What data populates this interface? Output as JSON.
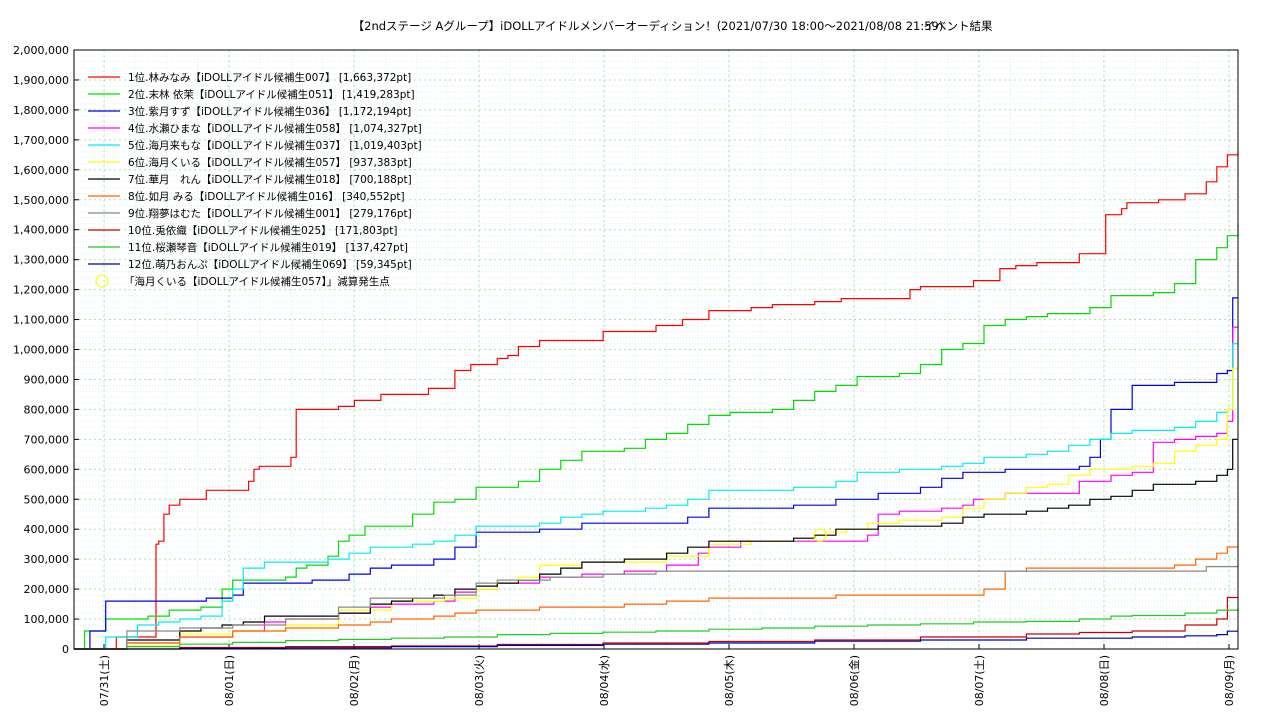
{
  "chart_data": {
    "type": "line",
    "title": "【2ndステージ Aグループ】iDOLLアイドルメンバーオーディション！(2021/07/30 18:00～2021/08/08 21:59)",
    "subtitle": "イベント結果",
    "xlabel": "",
    "ylabel": "",
    "x_ticks": [
      "07/31(土)",
      "08/01(日)",
      "08/02(月)",
      "08/03(火)",
      "08/04(水)",
      "08/05(木)",
      "08/06(金)",
      "08/07(土)",
      "08/08(日)",
      "08/09(月)"
    ],
    "x_range_hours": [
      0,
      220
    ],
    "ylim": [
      0,
      2000000
    ],
    "y_ticks": [
      0,
      100000,
      200000,
      300000,
      400000,
      500000,
      600000,
      700000,
      800000,
      900000,
      1000000,
      1100000,
      1200000,
      1300000,
      1400000,
      1500000,
      1600000,
      1700000,
      1800000,
      1900000,
      2000000
    ],
    "y_tick_labels": [
      "0",
      "100,000",
      "200,000",
      "300,000",
      "400,000",
      "500,000",
      "600,000",
      "700,000",
      "800,000",
      "900,000",
      "1,000,000",
      "1,100,000",
      "1,200,000",
      "1,300,000",
      "1,400,000",
      "1,500,000",
      "1,600,000",
      "1,700,000",
      "1,800,000",
      "1,900,000",
      "2,000,000"
    ],
    "grid": true,
    "legend_position": "top-left",
    "marker_legend": "「海月くいる【iDOLLアイドル候補生057】」減算発生点",
    "marker_color": "#ffff00",
    "marker_points": [
      {
        "x": 141,
        "y": 380000
      }
    ],
    "series": [
      {
        "name": "1位.林みなみ【iDOLLアイドル候補生007】 [1,663,372pt]",
        "color": "#ff0000",
        "x": [
          0,
          8,
          15,
          15.5,
          16,
          17,
          18,
          20,
          22,
          25,
          32,
          33,
          34,
          35,
          40,
          41,
          42,
          50,
          53,
          55,
          58,
          67,
          69,
          72,
          75,
          80,
          82,
          84,
          88,
          92,
          96,
          100,
          110,
          115,
          120,
          125,
          128,
          132,
          140,
          145,
          150,
          158,
          160,
          165,
          170,
          175,
          178,
          182,
          185,
          190,
          195,
          198,
          199,
          200,
          205,
          210,
          212,
          214,
          216,
          218,
          220
        ],
        "y": [
          0,
          40000,
          40000,
          350000,
          360000,
          450000,
          480000,
          500000,
          500000,
          530000,
          530000,
          560000,
          600000,
          610000,
          610000,
          640000,
          800000,
          810000,
          830000,
          830000,
          850000,
          870000,
          870000,
          930000,
          950000,
          970000,
          980000,
          1010000,
          1030000,
          1030000,
          1030000,
          1060000,
          1080000,
          1100000,
          1130000,
          1130000,
          1140000,
          1150000,
          1160000,
          1170000,
          1170000,
          1200000,
          1210000,
          1210000,
          1230000,
          1270000,
          1280000,
          1290000,
          1290000,
          1320000,
          1450000,
          1470000,
          1490000,
          1490000,
          1500000,
          1520000,
          1520000,
          1560000,
          1610000,
          1650000,
          1663372
        ]
      },
      {
        "name": "2位.末林 依茉【iDOLLアイドル候補生051】 [1,419,283pt]",
        "color": "#00dd00",
        "x": [
          0,
          2,
          6,
          14,
          18,
          24,
          28,
          30,
          36,
          40,
          42,
          44,
          48,
          50,
          52,
          55,
          60,
          64,
          68,
          72,
          76,
          80,
          84,
          88,
          92,
          96,
          100,
          104,
          108,
          112,
          116,
          120,
          124,
          128,
          132,
          136,
          140,
          144,
          148,
          152,
          156,
          160,
          164,
          168,
          172,
          176,
          180,
          184,
          188,
          192,
          196,
          200,
          204,
          208,
          212,
          216,
          218,
          220
        ],
        "y": [
          0,
          60000,
          100000,
          110000,
          130000,
          140000,
          200000,
          230000,
          230000,
          240000,
          270000,
          280000,
          310000,
          360000,
          380000,
          410000,
          410000,
          450000,
          490000,
          500000,
          540000,
          540000,
          560000,
          600000,
          630000,
          660000,
          660000,
          670000,
          700000,
          720000,
          750000,
          780000,
          790000,
          790000,
          800000,
          830000,
          860000,
          880000,
          910000,
          910000,
          920000,
          950000,
          1000000,
          1020000,
          1080000,
          1100000,
          1110000,
          1120000,
          1120000,
          1140000,
          1180000,
          1180000,
          1190000,
          1220000,
          1300000,
          1340000,
          1380000,
          1419283
        ]
      },
      {
        "name": "3位.紫月すず【iDOLLアイドル候補生036】 [1,172,194pt]",
        "color": "#0000ee",
        "x": [
          0,
          3,
          6,
          15,
          20,
          25,
          30,
          32,
          40,
          45,
          50,
          52,
          56,
          60,
          64,
          68,
          72,
          76,
          80,
          88,
          96,
          104,
          112,
          116,
          120,
          128,
          136,
          144,
          152,
          156,
          160,
          164,
          168,
          176,
          184,
          190,
          192,
          194,
          196,
          200,
          204,
          208,
          212,
          216,
          218,
          219,
          220
        ],
        "y": [
          0,
          60000,
          160000,
          160000,
          160000,
          170000,
          180000,
          220000,
          220000,
          230000,
          230000,
          250000,
          270000,
          280000,
          280000,
          300000,
          340000,
          390000,
          390000,
          400000,
          420000,
          420000,
          420000,
          440000,
          470000,
          470000,
          480000,
          500000,
          520000,
          520000,
          540000,
          570000,
          590000,
          600000,
          600000,
          610000,
          640000,
          700000,
          800000,
          880000,
          880000,
          890000,
          890000,
          920000,
          930000,
          1172194,
          1172194
        ]
      },
      {
        "name": "4位.水瀬ひまな【iDOLLアイドル候補生058】 [1,074,327pt]",
        "color": "#ff00ff",
        "x": [
          0,
          10,
          20,
          30,
          36,
          40,
          46,
          50,
          56,
          60,
          68,
          72,
          76,
          80,
          88,
          96,
          104,
          112,
          118,
          120,
          126,
          132,
          140,
          148,
          150,
          152,
          156,
          160,
          164,
          168,
          170,
          176,
          184,
          190,
          196,
          200,
          204,
          208,
          212,
          216,
          218,
          219,
          220
        ],
        "y": [
          0,
          20000,
          40000,
          60000,
          90000,
          100000,
          100000,
          120000,
          140000,
          150000,
          160000,
          190000,
          200000,
          220000,
          240000,
          250000,
          260000,
          280000,
          320000,
          340000,
          360000,
          360000,
          360000,
          360000,
          380000,
          450000,
          460000,
          460000,
          470000,
          480000,
          500000,
          520000,
          520000,
          560000,
          580000,
          590000,
          690000,
          700000,
          710000,
          720000,
          760000,
          1074327,
          1074327
        ]
      },
      {
        "name": "5位.海月来もな【iDOLLアイドル候補生037】 [1,019,403pt]",
        "color": "#00eeee",
        "x": [
          0,
          6,
          12,
          16,
          20,
          24,
          28,
          30,
          32,
          36,
          40,
          44,
          48,
          52,
          56,
          60,
          64,
          68,
          72,
          76,
          80,
          84,
          88,
          92,
          96,
          100,
          104,
          108,
          112,
          116,
          120,
          124,
          128,
          132,
          136,
          140,
          144,
          148,
          152,
          156,
          160,
          164,
          168,
          172,
          176,
          180,
          184,
          188,
          192,
          196,
          200,
          204,
          208,
          212,
          216,
          218,
          219,
          220
        ],
        "y": [
          0,
          40000,
          80000,
          90000,
          100000,
          110000,
          160000,
          200000,
          270000,
          290000,
          290000,
          290000,
          300000,
          320000,
          340000,
          340000,
          350000,
          360000,
          380000,
          410000,
          410000,
          410000,
          420000,
          440000,
          450000,
          460000,
          460000,
          470000,
          480000,
          500000,
          530000,
          530000,
          530000,
          530000,
          540000,
          540000,
          560000,
          590000,
          590000,
          600000,
          600000,
          610000,
          620000,
          640000,
          640000,
          650000,
          660000,
          680000,
          700000,
          720000,
          730000,
          730000,
          740000,
          760000,
          790000,
          800000,
          1019403,
          1019403
        ]
      },
      {
        "name": "6位.海月くいる【iDOLLアイドル候補生057】 [937,383pt]",
        "color": "#ffff00",
        "x": [
          0,
          10,
          20,
          30,
          40,
          50,
          60,
          70,
          76,
          80,
          84,
          88,
          96,
          104,
          112,
          120,
          128,
          136,
          140,
          141,
          142,
          146,
          150,
          156,
          160,
          164,
          168,
          172,
          176,
          180,
          184,
          188,
          192,
          196,
          200,
          204,
          208,
          212,
          216,
          218,
          219,
          220
        ],
        "y": [
          0,
          10000,
          50000,
          60000,
          80000,
          130000,
          160000,
          170000,
          200000,
          220000,
          240000,
          280000,
          290000,
          290000,
          310000,
          350000,
          360000,
          370000,
          380000,
          380000,
          390000,
          400000,
          420000,
          430000,
          430000,
          440000,
          470000,
          500000,
          520000,
          540000,
          550000,
          580000,
          600000,
          600000,
          610000,
          620000,
          660000,
          680000,
          700000,
          800000,
          937383,
          937383
        ]
      },
      {
        "name": "7位.華月　れん【iDOLLアイドル候補生018】 [700,188pt]",
        "color": "#000000",
        "x": [
          0,
          10,
          20,
          24,
          28,
          32,
          36,
          40,
          44,
          50,
          56,
          60,
          64,
          68,
          72,
          76,
          80,
          84,
          88,
          92,
          96,
          104,
          112,
          116,
          120,
          128,
          136,
          140,
          144,
          152,
          160,
          164,
          168,
          172,
          176,
          180,
          184,
          188,
          192,
          196,
          200,
          204,
          208,
          212,
          216,
          218,
          219,
          220
        ],
        "y": [
          0,
          30000,
          60000,
          70000,
          80000,
          90000,
          110000,
          110000,
          110000,
          120000,
          150000,
          160000,
          170000,
          180000,
          200000,
          210000,
          220000,
          230000,
          250000,
          270000,
          290000,
          300000,
          320000,
          340000,
          360000,
          360000,
          370000,
          380000,
          400000,
          410000,
          410000,
          420000,
          440000,
          450000,
          450000,
          460000,
          470000,
          480000,
          500000,
          510000,
          530000,
          550000,
          550000,
          560000,
          580000,
          600000,
          700188,
          700188
        ]
      },
      {
        "name": "8位.如月 みる【iDOLLアイドル候補生016】 [340,552pt]",
        "color": "#ff6600",
        "x": [
          0,
          10,
          20,
          30,
          40,
          50,
          56,
          60,
          64,
          68,
          72,
          76,
          80,
          88,
          96,
          104,
          112,
          120,
          128,
          136,
          144,
          152,
          160,
          168,
          172,
          176,
          180,
          184,
          192,
          200,
          208,
          212,
          216,
          218,
          220
        ],
        "y": [
          0,
          20000,
          40000,
          60000,
          70000,
          80000,
          90000,
          100000,
          100000,
          110000,
          120000,
          130000,
          130000,
          140000,
          140000,
          150000,
          160000,
          170000,
          170000,
          170000,
          180000,
          180000,
          180000,
          180000,
          200000,
          260000,
          270000,
          270000,
          270000,
          270000,
          280000,
          300000,
          320000,
          340552,
          340552
        ]
      },
      {
        "name": "9位.翔夢はむた【iDOLLアイドル候補生001】 [279,176pt]",
        "color": "#888888",
        "x": [
          0,
          10,
          20,
          30,
          40,
          50,
          56,
          60,
          70,
          76,
          80,
          90,
          100,
          110,
          120,
          130,
          140,
          150,
          160,
          170,
          180,
          190,
          200,
          210,
          214,
          220
        ],
        "y": [
          0,
          60000,
          70000,
          80000,
          100000,
          140000,
          170000,
          170000,
          180000,
          220000,
          230000,
          240000,
          250000,
          260000,
          260000,
          260000,
          260000,
          260000,
          260000,
          260000,
          260000,
          260000,
          260000,
          260000,
          275000,
          279176
        ]
      },
      {
        "name": "10位.兎依織【iDOLLアイドル候補生025】 [171,803pt]",
        "color": "#cc0000",
        "x": [
          0,
          20,
          40,
          60,
          80,
          100,
          120,
          140,
          160,
          180,
          190,
          200,
          210,
          216,
          218,
          220
        ],
        "y": [
          0,
          5000,
          8000,
          10000,
          15000,
          20000,
          25000,
          30000,
          40000,
          50000,
          55000,
          60000,
          80000,
          100000,
          171803,
          171803
        ]
      },
      {
        "name": "11位.桜瀬琴音【iDOLLアイドル候補生019】 [137,427pt]",
        "color": "#22cc22",
        "x": [
          0,
          10,
          20,
          30,
          40,
          50,
          60,
          70,
          80,
          90,
          100,
          110,
          120,
          130,
          140,
          150,
          160,
          170,
          180,
          190,
          196,
          200,
          210,
          216,
          220
        ],
        "y": [
          0,
          8000,
          16000,
          22000,
          28000,
          32000,
          36000,
          40000,
          48000,
          52000,
          56000,
          60000,
          66000,
          70000,
          76000,
          80000,
          84000,
          90000,
          92000,
          100000,
          110000,
          112000,
          120000,
          130000,
          137427
        ]
      },
      {
        "name": "12位.萌乃おんぷ【iDOLLアイドル候補生069】 [59,345pt]",
        "color": "#0000aa",
        "x": [
          0,
          20,
          40,
          60,
          80,
          100,
          120,
          140,
          160,
          180,
          200,
          210,
          216,
          218,
          220
        ],
        "y": [
          0,
          2000,
          4000,
          8000,
          12000,
          16000,
          20000,
          26000,
          30000,
          36000,
          40000,
          44000,
          48000,
          59345,
          59345
        ]
      }
    ]
  }
}
